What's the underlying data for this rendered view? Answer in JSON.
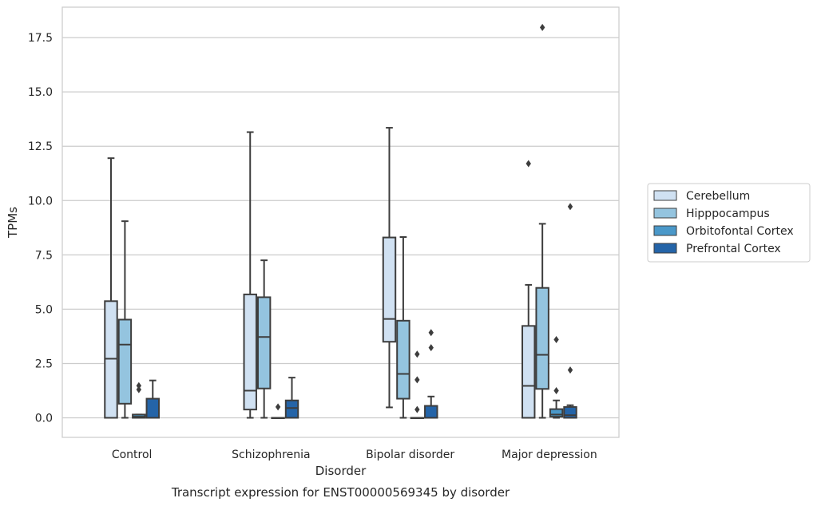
{
  "chart_data": {
    "type": "boxplot",
    "title": "Transcript expression for ENST00000569345 by disorder",
    "xlabel": "Disorder",
    "ylabel": "TPMs",
    "ylim": [
      -0.9,
      18.9
    ],
    "yticks": [
      "0.0",
      "2.5",
      "5.0",
      "7.5",
      "10.0",
      "12.5",
      "15.0",
      "17.5"
    ],
    "ytick_values": [
      0,
      2.5,
      5,
      7.5,
      10,
      12.5,
      15,
      17.5
    ],
    "grid": "horizontal",
    "legend_position": "right",
    "categories": [
      "Control",
      "Schizophrenia",
      "Bipolar disorder",
      "Major depression"
    ],
    "series": [
      {
        "name": "Cerebellum",
        "color": "#d0e1f2",
        "boxes": [
          {
            "whislo": 0.0,
            "q1": 0.0,
            "med": 2.72,
            "q3": 5.37,
            "whishi": 11.95,
            "fliers": []
          },
          {
            "whislo": 0.0,
            "q1": 0.38,
            "med": 1.25,
            "q3": 5.68,
            "whishi": 13.15,
            "fliers": []
          },
          {
            "whislo": 0.48,
            "q1": 3.5,
            "med": 4.55,
            "q3": 8.3,
            "whishi": 13.35,
            "fliers": []
          },
          {
            "whislo": 0.0,
            "q1": 0.0,
            "med": 1.47,
            "q3": 4.23,
            "whishi": 6.12,
            "fliers": [
              11.7
            ]
          }
        ]
      },
      {
        "name": "Hipppocampus",
        "color": "#94c4df",
        "boxes": [
          {
            "whislo": 0.0,
            "q1": 0.65,
            "med": 3.37,
            "q3": 4.52,
            "whishi": 9.05,
            "fliers": []
          },
          {
            "whislo": 0.0,
            "q1": 1.35,
            "med": 3.72,
            "q3": 5.55,
            "whishi": 7.25,
            "fliers": []
          },
          {
            "whislo": 0.0,
            "q1": 0.88,
            "med": 2.02,
            "q3": 4.47,
            "whishi": 8.32,
            "fliers": []
          },
          {
            "whislo": 0.0,
            "q1": 1.33,
            "med": 2.9,
            "q3": 5.98,
            "whishi": 8.93,
            "fliers": [
              17.97
            ]
          }
        ]
      },
      {
        "name": "Orbitofontal Cortex",
        "color": "#4a98c9",
        "boxes": [
          {
            "whislo": 0.0,
            "q1": 0.0,
            "med": 0.05,
            "q3": 0.15,
            "whishi": 0.15,
            "fliers": [
              1.3,
              1.48
            ]
          },
          {
            "whislo": 0.0,
            "q1": 0.0,
            "med": 0.0,
            "q3": 0.0,
            "whishi": 0.0,
            "fliers": [
              0.5
            ]
          },
          {
            "whislo": 0.0,
            "q1": 0.0,
            "med": 0.0,
            "q3": 0.0,
            "whishi": 0.0,
            "fliers": [
              0.38,
              1.75,
              2.93
            ]
          },
          {
            "whislo": 0.0,
            "q1": 0.05,
            "med": 0.15,
            "q3": 0.4,
            "whishi": 0.8,
            "fliers": [
              1.25,
              3.6
            ]
          }
        ]
      },
      {
        "name": "Prefrontal Cortex",
        "color": "#2464a8",
        "boxes": [
          {
            "whislo": 0.0,
            "q1": 0.0,
            "med": 0.0,
            "q3": 0.88,
            "whishi": 1.72,
            "fliers": []
          },
          {
            "whislo": 0.0,
            "q1": 0.0,
            "med": 0.45,
            "q3": 0.8,
            "whishi": 1.85,
            "fliers": []
          },
          {
            "whislo": 0.0,
            "q1": 0.0,
            "med": 0.0,
            "q3": 0.55,
            "whishi": 0.98,
            "fliers": [
              3.23,
              3.92
            ]
          },
          {
            "whislo": 0.0,
            "q1": 0.0,
            "med": 0.12,
            "q3": 0.5,
            "whishi": 0.58,
            "fliers": [
              2.2,
              9.72
            ]
          }
        ]
      }
    ]
  }
}
